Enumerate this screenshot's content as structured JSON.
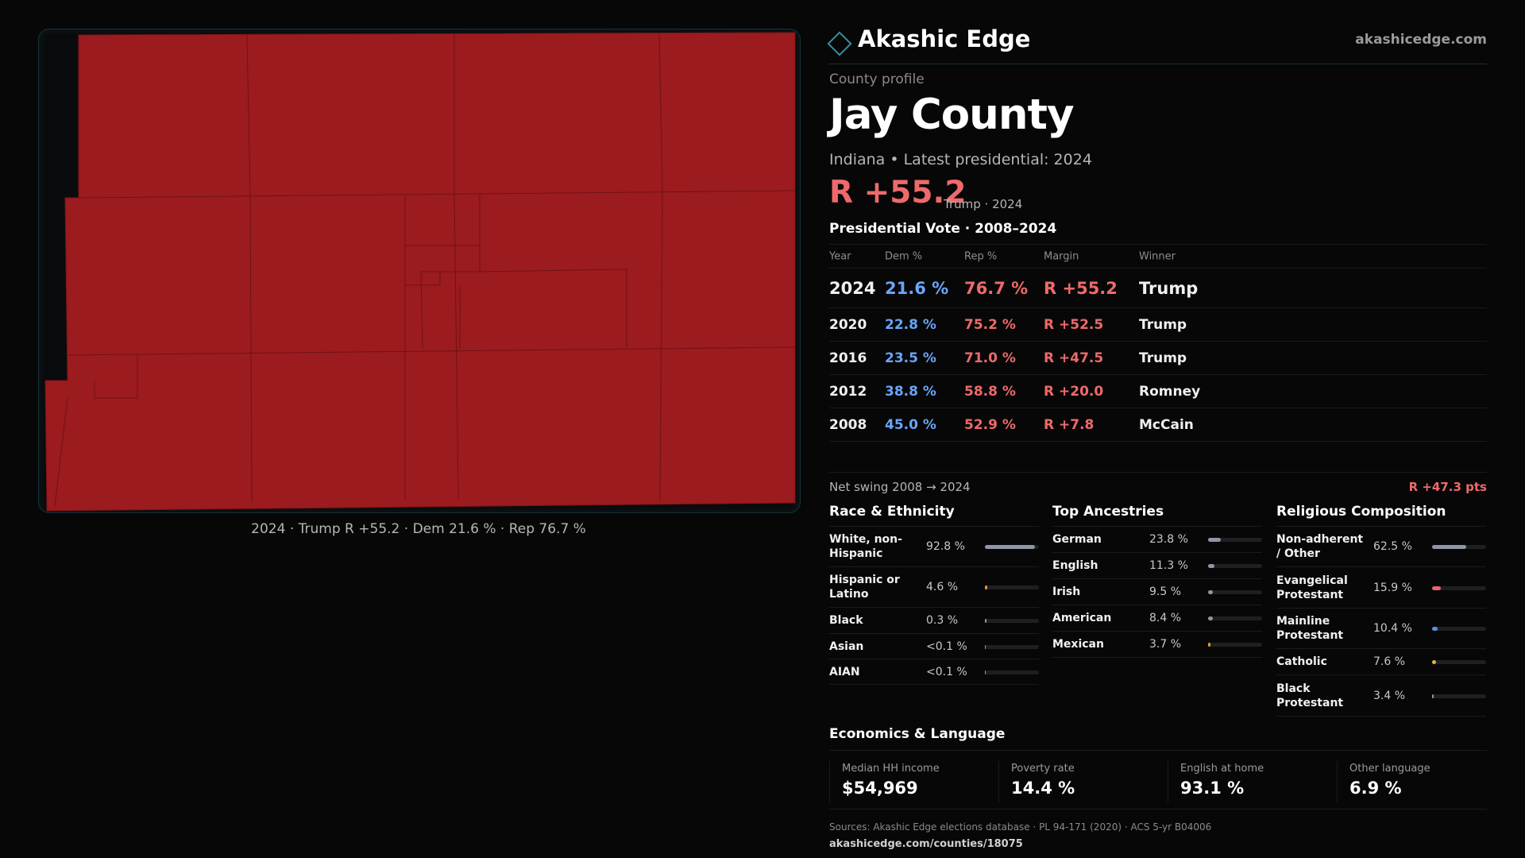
{
  "brand": {
    "name": "Akashic Edge",
    "url": "akashicedge.com",
    "logo_icon": "diamond-outline-icon",
    "accent": "#3a8f9b"
  },
  "map": {
    "caption": "2024 · Trump R +55.2 · Dem 21.6 % · Rep 76.7 %",
    "fill_color": "#9b1b1f",
    "description_icon": "county-precinct-map"
  },
  "profile": {
    "eyebrow": "County profile",
    "title": "Jay County",
    "subline": "Indiana • Latest presidential: 2024",
    "headline_margin": "R +55.2",
    "headline_note": "Trump · 2024"
  },
  "presidential": {
    "title": "Presidential Vote · 2008–2024",
    "headers": {
      "year": "Year",
      "dem": "Dem %",
      "rep": "Rep %",
      "margin": "Margin",
      "winner": "Winner"
    },
    "rows": [
      {
        "year": "2024",
        "dem": "21.6 %",
        "rep": "76.7 %",
        "margin": "R +55.2",
        "winner": "Trump"
      },
      {
        "year": "2020",
        "dem": "22.8 %",
        "rep": "75.2 %",
        "margin": "R +52.5",
        "winner": "Trump"
      },
      {
        "year": "2016",
        "dem": "23.5 %",
        "rep": "71.0 %",
        "margin": "R +47.5",
        "winner": "Trump"
      },
      {
        "year": "2012",
        "dem": "38.8 %",
        "rep": "58.8 %",
        "margin": "R +20.0",
        "winner": "Romney"
      },
      {
        "year": "2008",
        "dem": "45.0 %",
        "rep": "52.9 %",
        "margin": "R +7.8",
        "winner": "McCain"
      }
    ],
    "swing_label": "Net swing 2008 → 2024",
    "swing_value": "R +47.3 pts"
  },
  "race": {
    "title": "Race & Ethnicity",
    "items": [
      {
        "label": "White, non-Hispanic",
        "value": "92.8 %",
        "share": 92.8,
        "color": "#8f97a6"
      },
      {
        "label": "Hispanic or Latino",
        "value": "4.6 %",
        "share": 4.6,
        "color": "#e39a2f"
      },
      {
        "label": "Black",
        "value": "0.3 %",
        "share": 0.3,
        "color": "#8f97a6"
      },
      {
        "label": "Asian",
        "value": "<0.1 %",
        "share": 0.05,
        "color": "#8f97a6"
      },
      {
        "label": "AIAN",
        "value": "<0.1 %",
        "share": 0.05,
        "color": "#8f97a6"
      }
    ]
  },
  "ancestry": {
    "title": "Top Ancestries",
    "items": [
      {
        "label": "German",
        "value": "23.8 %",
        "share": 23.8,
        "color": "#8f97a6"
      },
      {
        "label": "English",
        "value": "11.3 %",
        "share": 11.3,
        "color": "#8f97a6"
      },
      {
        "label": "Irish",
        "value": "9.5 %",
        "share": 9.5,
        "color": "#8f97a6"
      },
      {
        "label": "American",
        "value": "8.4 %",
        "share": 8.4,
        "color": "#8f97a6"
      },
      {
        "label": "Mexican",
        "value": "3.7 %",
        "share": 3.7,
        "color": "#e39a2f"
      }
    ]
  },
  "religion": {
    "title": "Religious Composition",
    "items": [
      {
        "label": "Non-adherent / Other",
        "value": "62.5 %",
        "share": 62.5,
        "color": "#8f97a6"
      },
      {
        "label": "Evangelical Protestant",
        "value": "15.9 %",
        "share": 15.9,
        "color": "#e8646b"
      },
      {
        "label": "Mainline Protestant",
        "value": "10.4 %",
        "share": 10.4,
        "color": "#5b8fe8"
      },
      {
        "label": "Catholic",
        "value": "7.6 %",
        "share": 7.6,
        "color": "#e3b52f"
      },
      {
        "label": "Black Protestant",
        "value": "3.4 %",
        "share": 3.4,
        "color": "#8f97a6"
      }
    ]
  },
  "economics": {
    "title": "Economics & Language",
    "items": [
      {
        "label": "Median HH income",
        "value": "$54,969"
      },
      {
        "label": "Poverty rate",
        "value": "14.4 %"
      },
      {
        "label": "English at home",
        "value": "93.1 %"
      },
      {
        "label": "Other language",
        "value": "6.9 %"
      }
    ]
  },
  "footer": {
    "sources": "Sources: Akashic Edge elections database · PL 94-171 (2020) · ACS 5-yr B04006",
    "page_url": "akashicedge.com/counties/18075"
  }
}
